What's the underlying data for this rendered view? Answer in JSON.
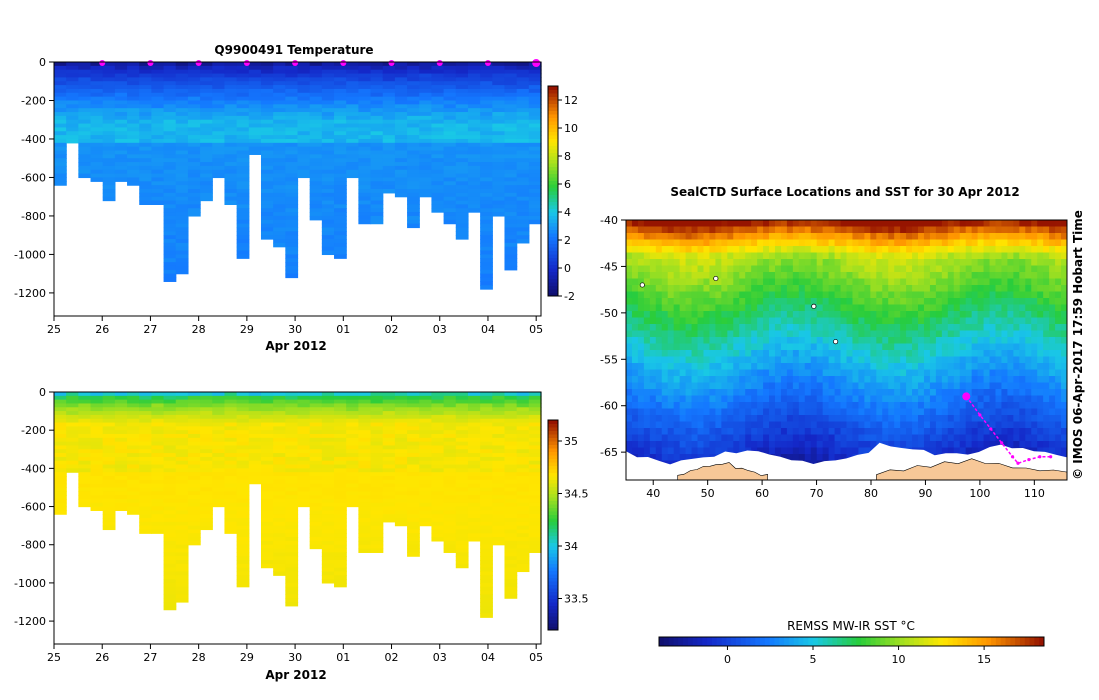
{
  "chart_data": [
    {
      "type": "heatmap",
      "id": "temperature",
      "title": "Q9900491  Temperature",
      "xlabel": "Apr 2012",
      "ylabel": "",
      "x_ticks": [
        "25",
        "26",
        "27",
        "28",
        "29",
        "30",
        "01",
        "02",
        "03",
        "04",
        "05"
      ],
      "y_ticks": [
        "0",
        "-200",
        "-400",
        "-600",
        "-800",
        "-1000",
        "-1200"
      ],
      "ylim": [
        -1320,
        0
      ],
      "xlim": [
        25,
        35.1
      ],
      "colorbar": {
        "min": -2,
        "max": 13,
        "ticks": [
          "-2",
          "0",
          "2",
          "4",
          "6",
          "8",
          "10",
          "12"
        ]
      },
      "profile_max_depths": [
        640,
        410,
        600,
        620,
        720,
        610,
        640,
        740,
        740,
        1140,
        1100,
        790,
        720,
        590,
        740,
        1010,
        470,
        920,
        960,
        1120,
        600,
        820,
        1000,
        1010,
        590,
        830,
        830,
        680,
        690,
        860,
        700,
        780,
        840,
        920,
        770,
        1170,
        790,
        1070,
        940,
        830
      ],
      "surface_markers_x": [
        26,
        27,
        28,
        29,
        30,
        31,
        32,
        33,
        34,
        35
      ],
      "value_range": [
        -1.5,
        4
      ]
    },
    {
      "type": "heatmap",
      "id": "salinity",
      "title": "",
      "xlabel": "Apr 2012",
      "ylabel": "",
      "x_ticks": [
        "25",
        "26",
        "27",
        "28",
        "29",
        "30",
        "01",
        "02",
        "03",
        "04",
        "05"
      ],
      "y_ticks": [
        "0",
        "-200",
        "-400",
        "-600",
        "-800",
        "-1000",
        "-1200"
      ],
      "ylim": [
        -1320,
        0
      ],
      "xlim": [
        25,
        35.1
      ],
      "colorbar": {
        "min": 33.2,
        "max": 35.2,
        "ticks": [
          "33.5",
          "34",
          "34.5",
          "35"
        ]
      },
      "value_range": [
        33.9,
        34.75
      ]
    },
    {
      "type": "heatmap",
      "id": "sst-map",
      "title": "SealCTD Surface Locations and SST for 30 Apr 2012",
      "x_ticks": [
        "40",
        "50",
        "60",
        "70",
        "80",
        "90",
        "100",
        "110"
      ],
      "y_ticks": [
        "-40",
        "-45",
        "-50",
        "-55",
        "-60",
        "-65"
      ],
      "xlim": [
        35,
        116
      ],
      "ylim": [
        -68,
        -40
      ],
      "colorbar": {
        "label": "REMSS MW-IR SST °C",
        "min": -4,
        "max": 18.5,
        "ticks": [
          "0",
          "5",
          "10",
          "15"
        ]
      },
      "track": [
        [
          97.5,
          -59
        ],
        [
          100,
          -61
        ],
        [
          102,
          -62.5
        ],
        [
          104,
          -64
        ],
        [
          106,
          -65.5
        ],
        [
          107,
          -66.2
        ],
        [
          109,
          -65.8
        ],
        [
          111,
          -65.5
        ],
        [
          113,
          -65.5
        ]
      ]
    }
  ],
  "credit": "©  IMOS 06-Apr-2017 17:59 Hobart Time",
  "colors": {
    "land": "#f7c898",
    "track": "#ff00ff",
    "axis": "#000000"
  }
}
